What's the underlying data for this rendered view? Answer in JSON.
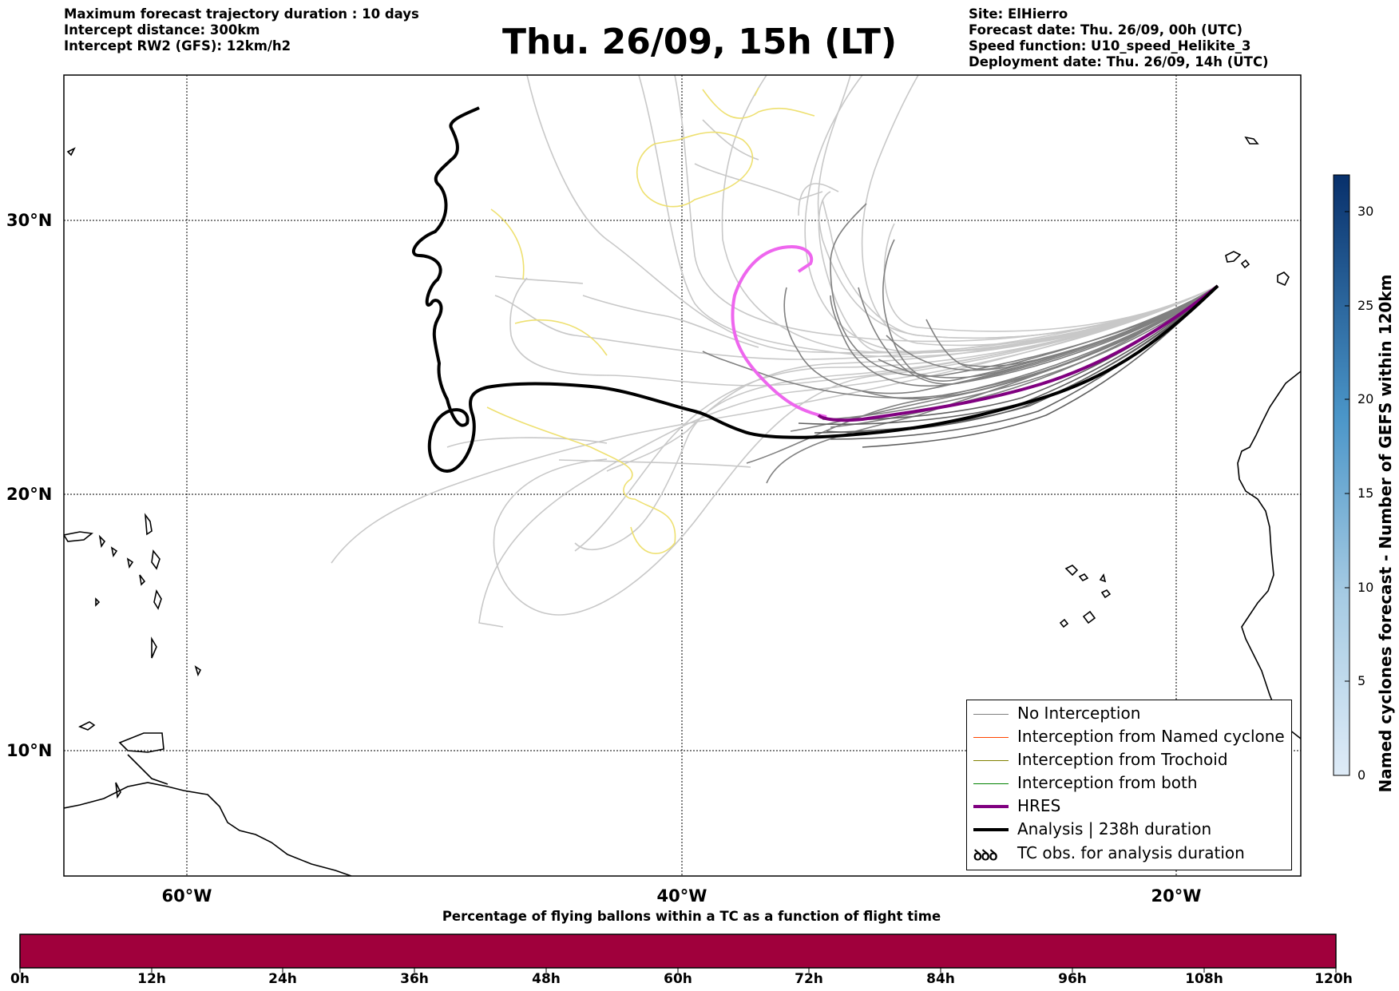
{
  "header": {
    "left_lines": [
      "Maximum forecast trajectory duration : 10 days",
      "Intercept distance: 300km",
      "Intercept RW2 (GFS):  12km/h2"
    ],
    "title": "Thu. 26/09, 15h (LT)",
    "right_lines": [
      "Site: ElHierro",
      "Forecast date: Thu. 26/09, 00h (UTC)",
      "Speed function: U10_speed_Helikite_3",
      "Deployment date: Thu. 26/09, 14h (UTC)"
    ]
  },
  "map": {
    "lat_labels": [
      "30°N",
      "20°N",
      "10°N"
    ],
    "lon_labels": [
      "60°W",
      "40°W",
      "20°W"
    ],
    "gridlines": true,
    "colors": {
      "no_interception": "#808080",
      "ensemble_faint": "#c8c8c8",
      "named_cyclone": "#ff4500",
      "trochoid": "#808000",
      "both": "#008000",
      "hres": "#800080",
      "analysis": "#000000",
      "forecast_track": "#ee66ee",
      "other_track": "#eee070"
    }
  },
  "legend": {
    "items": [
      {
        "label": "No Interception",
        "color": "#808080",
        "width": 1.3
      },
      {
        "label": "Interception from Named cyclone",
        "color": "#ff4500",
        "width": 1.3
      },
      {
        "label": "Interception from Trochoid",
        "color": "#808000",
        "width": 1.3
      },
      {
        "label": "Interception from both",
        "color": "#008000",
        "width": 1.3
      },
      {
        "label": "HRES",
        "color": "#800080",
        "width": 4
      },
      {
        "label": "Analysis | 238h duration",
        "color": "#000000",
        "width": 4
      }
    ],
    "tc_obs": {
      "symbol": "ꝺꝺꝺ",
      "label": "TC obs. for analysis duration"
    }
  },
  "colorbar": {
    "title": "Named cyclones forecast - Number of GEFS within 120km",
    "ticks": [
      "30",
      "25",
      "20",
      "15",
      "10",
      "5",
      "0"
    ],
    "range": [
      0,
      32
    ],
    "colors": [
      "#dce9f6",
      "#c6dbef",
      "#a6cbe3",
      "#84b9dc",
      "#5ea3d1",
      "#3f8bc3",
      "#2a74b5",
      "#1a5fa5",
      "#0d4b92",
      "#0a3b7a",
      "#08306b"
    ]
  },
  "time_bar": {
    "title": "Percentage of flying ballons within a TC as a function of flight time",
    "labels": [
      "0h",
      "12h",
      "24h",
      "36h",
      "48h",
      "60h",
      "72h",
      "84h",
      "96h",
      "108h",
      "120h"
    ],
    "color": "#a0003c"
  }
}
